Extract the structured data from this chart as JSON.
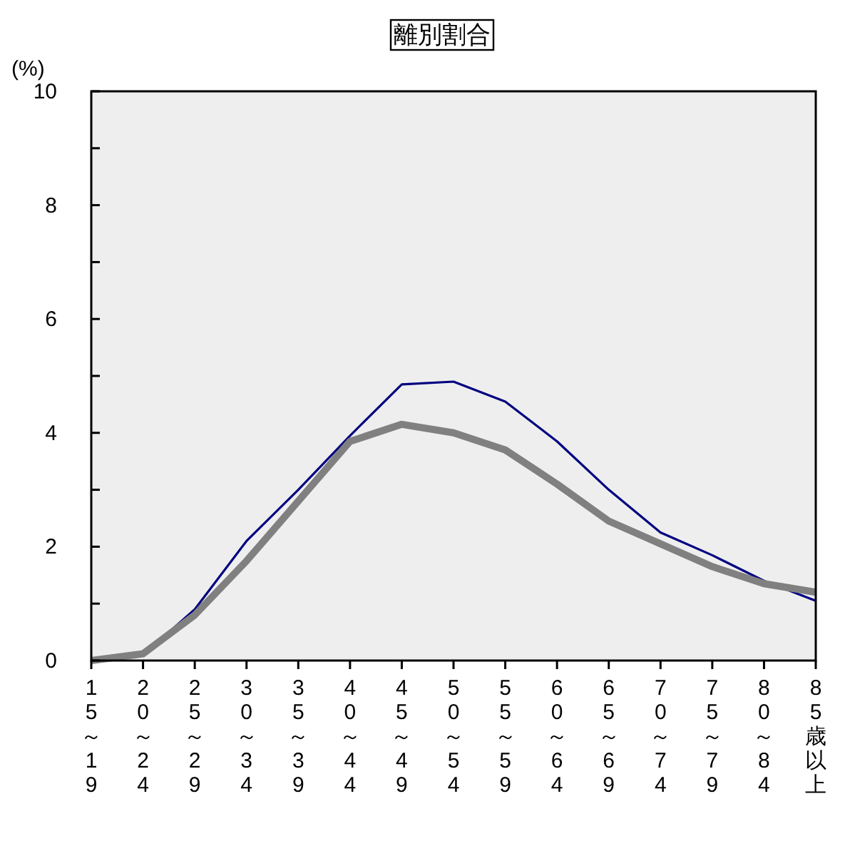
{
  "chart_data": {
    "type": "line",
    "title": "離別割合",
    "ylabel": "(%)",
    "categories": [
      "15～19",
      "20～24",
      "25～29",
      "30～34",
      "35～39",
      "40～44",
      "45～49",
      "50～54",
      "55～59",
      "60～64",
      "65～69",
      "70～74",
      "75～79",
      "80～84",
      "85歳以上"
    ],
    "series": [
      {
        "color": "#000080",
        "values": [
          0.0,
          0.1,
          0.9,
          2.1,
          3.0,
          3.95,
          4.85,
          4.9,
          4.55,
          3.85,
          3.0,
          2.25,
          1.85,
          1.4,
          1.05
        ]
      },
      {
        "color": "#808080",
        "values": [
          0.0,
          0.12,
          0.8,
          1.75,
          2.8,
          3.85,
          4.15,
          4.0,
          3.7,
          3.1,
          2.45,
          2.05,
          1.65,
          1.35,
          1.2
        ]
      }
    ],
    "ylim": [
      0,
      10
    ],
    "yticks": [
      0,
      {
        "value": 1,
        "label": null
      },
      2,
      {
        "value": 3,
        "label": null
      },
      4,
      {
        "value": 5,
        "label": null
      },
      6,
      {
        "value": 7,
        "label": null
      },
      8,
      {
        "value": 9,
        "label": null
      },
      10
    ],
    "grid": false,
    "marker": "none",
    "line_style": "solid"
  }
}
